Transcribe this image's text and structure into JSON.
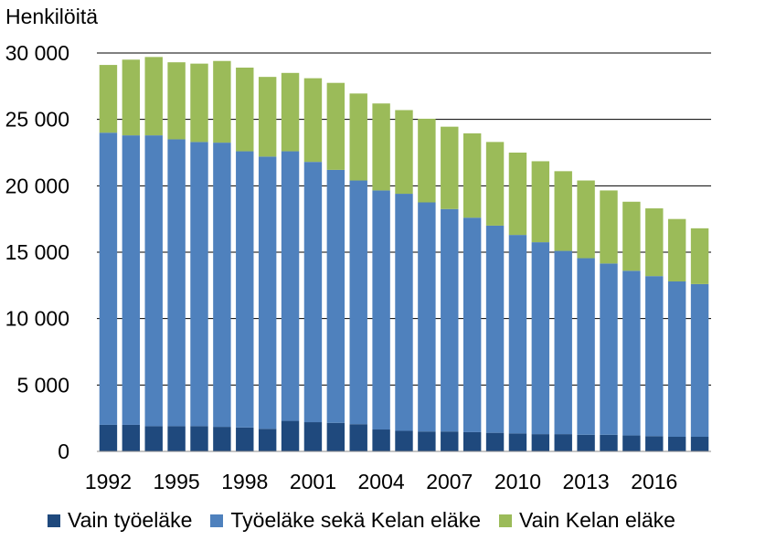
{
  "chart_data": {
    "type": "bar",
    "stacked": true,
    "ylabel": "Henkilöitä",
    "ylim": [
      0,
      30000
    ],
    "yticks": [
      "0",
      "5 000",
      "10 000",
      "15 000",
      "20 000",
      "25 000",
      "30 000"
    ],
    "ytick_values": [
      0,
      5000,
      10000,
      15000,
      20000,
      25000,
      30000
    ],
    "xtick_labels": [
      "1992",
      "1995",
      "1998",
      "2001",
      "2004",
      "2007",
      "2010",
      "2013",
      "2016"
    ],
    "categories": [
      "1992",
      "1993",
      "1994",
      "1995",
      "1996",
      "1997",
      "1998",
      "1999",
      "2000",
      "2001",
      "2002",
      "2003",
      "2004",
      "2005",
      "2006",
      "2007",
      "2008",
      "2009",
      "2010",
      "2011",
      "2012",
      "2013",
      "2014",
      "2015",
      "2016",
      "2017",
      "2018"
    ],
    "series": [
      {
        "name": "Vain työeläke",
        "color": "#1f497d",
        "values": [
          2000,
          2000,
          1900,
          1900,
          1900,
          1850,
          1800,
          1700,
          2300,
          2200,
          2150,
          2050,
          1650,
          1550,
          1500,
          1500,
          1450,
          1400,
          1350,
          1300,
          1300,
          1250,
          1250,
          1200,
          1150,
          1100,
          1100
        ]
      },
      {
        "name": "Työeläke sekä Kelan eläke",
        "color": "#4f81bd",
        "values": [
          22000,
          21800,
          21900,
          21600,
          21400,
          21400,
          20800,
          20500,
          20300,
          19600,
          19050,
          18350,
          18000,
          17850,
          17250,
          16750,
          16150,
          15600,
          14950,
          14450,
          13800,
          13300,
          12900,
          12400,
          12050,
          11700,
          11500
        ]
      },
      {
        "name": "Vain Kelan eläke",
        "color": "#9bbb59",
        "values": [
          5100,
          5700,
          5900,
          5800,
          5900,
          6150,
          6300,
          6000,
          5900,
          6300,
          6550,
          6550,
          6550,
          6300,
          6300,
          6200,
          6350,
          6300,
          6200,
          6100,
          6000,
          5850,
          5500,
          5200,
          5100,
          4700,
          4200
        ]
      }
    ],
    "grid": true,
    "legend_position": "bottom"
  }
}
